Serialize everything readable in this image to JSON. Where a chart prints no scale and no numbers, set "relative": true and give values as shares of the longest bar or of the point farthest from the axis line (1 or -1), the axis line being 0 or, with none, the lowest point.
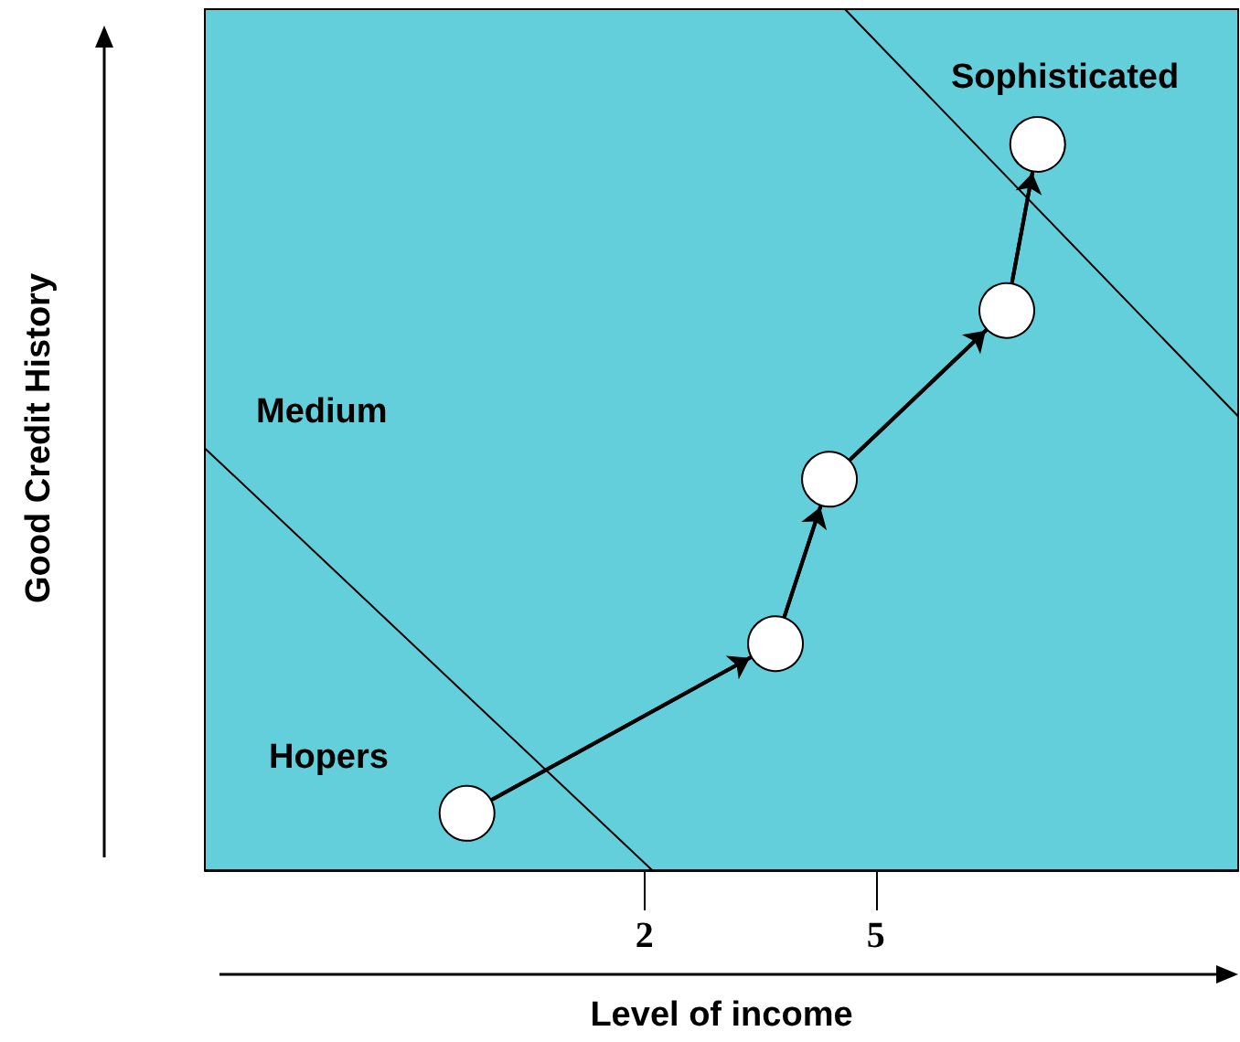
{
  "chart_data": {
    "type": "line",
    "xlabel": "Level of income",
    "ylabel": "Good Credit History",
    "annotations": [
      "Sophisticated",
      "Medium",
      "Hopers"
    ],
    "relative": true,
    "xlim": [
      -3.7,
      9.7
    ],
    "xticks": [
      2,
      5
    ],
    "tick_labels": "x",
    "grid": false,
    "series": [
      {
        "color": "#000000",
        "marker": "circle",
        "x": [
          -0.3,
          3.7,
          4.4,
          6.7,
          7.1
        ],
        "values": [
          0.066,
          0.263,
          0.454,
          0.65,
          0.843
        ]
      },
      {
        "color": "#000000",
        "marker": "none",
        "x": [
          -3.7,
          2.1
        ],
        "values": [
          0.49,
          0
        ]
      },
      {
        "color": "#000000",
        "marker": "none",
        "x": [
          4.6,
          9.7
        ],
        "values": [
          1,
          0.527
        ]
      }
    ]
  }
}
